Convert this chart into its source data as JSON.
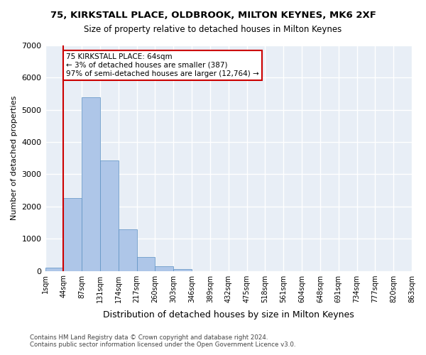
{
  "title_line1": "75, KIRKSTALL PLACE, OLDBROOK, MILTON KEYNES, MK6 2XF",
  "title_line2": "Size of property relative to detached houses in Milton Keynes",
  "xlabel": "Distribution of detached houses by size in Milton Keynes",
  "ylabel": "Number of detached properties",
  "footer_line1": "Contains HM Land Registry data © Crown copyright and database right 2024.",
  "footer_line2": "Contains public sector information licensed under the Open Government Licence v3.0.",
  "annotation_title": "75 KIRKSTALL PLACE: 64sqm",
  "annotation_line1": "← 3% of detached houses are smaller (387)",
  "annotation_line2": "97% of semi-detached houses are larger (12,764) →",
  "bin_labels": [
    "1sqm",
    "44sqm",
    "87sqm",
    "131sqm",
    "174sqm",
    "217sqm",
    "260sqm",
    "303sqm",
    "346sqm",
    "389sqm",
    "432sqm",
    "475sqm",
    "518sqm",
    "561sqm",
    "604sqm",
    "648sqm",
    "691sqm",
    "734sqm",
    "777sqm",
    "820sqm",
    "863sqm"
  ],
  "bar_heights": [
    100,
    2270,
    5380,
    3420,
    1290,
    420,
    150,
    60,
    0,
    0,
    0,
    0,
    0,
    0,
    0,
    0,
    0,
    0,
    0,
    0
  ],
  "bar_color": "#aec6e8",
  "bar_edge_color": "#5a8fc2",
  "background_color": "#e8eef6",
  "grid_color": "#ffffff",
  "vline_color": "#cc0000",
  "vline_x": 1.0,
  "annotation_box_color": "#ffffff",
  "annotation_box_edge": "#cc0000",
  "ylim": [
    0,
    7000
  ],
  "yticks": [
    0,
    1000,
    2000,
    3000,
    4000,
    5000,
    6000,
    7000
  ]
}
